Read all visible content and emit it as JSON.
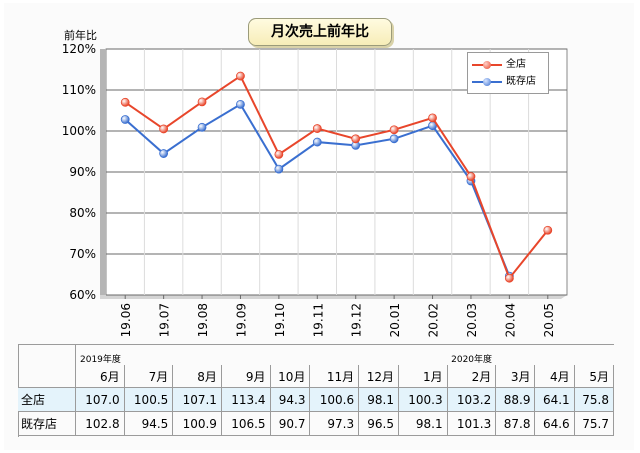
{
  "chart_data": {
    "type": "line",
    "title": "月次売上前年比",
    "ylabel": "前年比",
    "xlabel": "",
    "x": [
      "19.06",
      "19.07",
      "19.08",
      "19.09",
      "19.10",
      "19.11",
      "19.12",
      "20.01",
      "20.02",
      "20.03",
      "20.04",
      "20.05"
    ],
    "ylim": [
      60,
      120
    ],
    "yticks": [
      "60%",
      "70%",
      "80%",
      "90%",
      "100%",
      "110%",
      "120%"
    ],
    "grid": true,
    "legend_position": "top-right",
    "series": [
      {
        "name": "全店",
        "color": "#e8462b",
        "values": [
          107.0,
          100.5,
          107.1,
          113.4,
          94.3,
          100.6,
          98.1,
          100.3,
          103.2,
          88.9,
          64.1,
          75.8
        ]
      },
      {
        "name": "既存店",
        "color": "#3a6fd0",
        "values": [
          102.8,
          94.5,
          100.9,
          106.5,
          90.7,
          97.3,
          96.5,
          98.1,
          101.3,
          87.8,
          64.6,
          null
        ]
      }
    ]
  },
  "table": {
    "fiscal_year_labels": {
      "fy2019": "2019年度",
      "fy2020": "2020年度"
    },
    "months": [
      "6月",
      "7月",
      "8月",
      "9月",
      "10月",
      "11月",
      "12月",
      "1月",
      "2月",
      "3月",
      "4月",
      "5月"
    ],
    "rows": [
      {
        "label": "全店",
        "values": [
          "107.0",
          "100.5",
          "107.1",
          "113.4",
          "94.3",
          "100.6",
          "98.1",
          "100.3",
          "103.2",
          "88.9",
          "64.1",
          "75.8"
        ]
      },
      {
        "label": "既存店",
        "values": [
          "102.8",
          "94.5",
          "100.9",
          "106.5",
          "90.7",
          "97.3",
          "96.5",
          "98.1",
          "101.3",
          "87.8",
          "64.6",
          "75.7"
        ]
      }
    ]
  }
}
